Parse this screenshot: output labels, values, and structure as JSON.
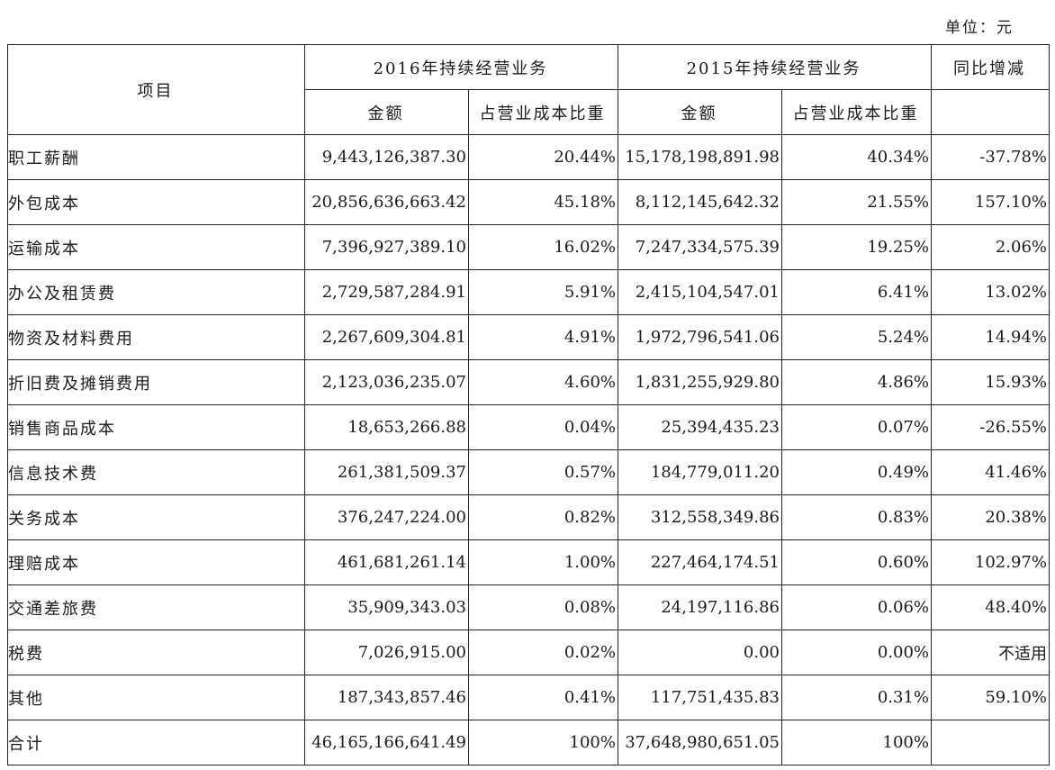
{
  "unit_label": "单位：元",
  "headers": {
    "item": "项目",
    "year2016": "2016年持续经营业务",
    "year2015": "2015年持续经营业务",
    "yoy": "同比增减",
    "amount_2016": "金额",
    "ratio_2016": "占营业成本比重",
    "amount_2015": "金额",
    "ratio_2015": "占营业成本比重"
  },
  "rows": [
    {
      "name": "职工薪酬",
      "amount_2016": "9,443,126,387.30",
      "ratio_2016": "20.44%",
      "amount_2015": "15,178,198,891.98",
      "ratio_2015": "40.34%",
      "yoy": "-37.78%"
    },
    {
      "name": "外包成本",
      "amount_2016": "20,856,636,663.42",
      "ratio_2016": "45.18%",
      "amount_2015": "8,112,145,642.32",
      "ratio_2015": "21.55%",
      "yoy": "157.10%"
    },
    {
      "name": "运输成本",
      "amount_2016": "7,396,927,389.10",
      "ratio_2016": "16.02%",
      "amount_2015": "7,247,334,575.39",
      "ratio_2015": "19.25%",
      "yoy": "2.06%"
    },
    {
      "name": "办公及租赁费",
      "amount_2016": "2,729,587,284.91",
      "ratio_2016": "5.91%",
      "amount_2015": "2,415,104,547.01",
      "ratio_2015": "6.41%",
      "yoy": "13.02%"
    },
    {
      "name": "物资及材料费用",
      "amount_2016": "2,267,609,304.81",
      "ratio_2016": "4.91%",
      "amount_2015": "1,972,796,541.06",
      "ratio_2015": "5.24%",
      "yoy": "14.94%"
    },
    {
      "name": "折旧费及摊销费用",
      "amount_2016": "2,123,036,235.07",
      "ratio_2016": "4.60%",
      "amount_2015": "1,831,255,929.80",
      "ratio_2015": "4.86%",
      "yoy": "15.93%"
    },
    {
      "name": "销售商品成本",
      "amount_2016": "18,653,266.88",
      "ratio_2016": "0.04%",
      "amount_2015": "25,394,435.23",
      "ratio_2015": "0.07%",
      "yoy": "-26.55%"
    },
    {
      "name": "信息技术费",
      "amount_2016": "261,381,509.37",
      "ratio_2016": "0.57%",
      "amount_2015": "184,779,011.20",
      "ratio_2015": "0.49%",
      "yoy": "41.46%"
    },
    {
      "name": "关务成本",
      "amount_2016": "376,247,224.00",
      "ratio_2016": "0.82%",
      "amount_2015": "312,558,349.86",
      "ratio_2015": "0.83%",
      "yoy": "20.38%"
    },
    {
      "name": "理赔成本",
      "amount_2016": "461,681,261.14",
      "ratio_2016": "1.00%",
      "amount_2015": "227,464,174.51",
      "ratio_2015": "0.60%",
      "yoy": "102.97%"
    },
    {
      "name": "交通差旅费",
      "amount_2016": "35,909,343.03",
      "ratio_2016": "0.08%",
      "amount_2015": "24,197,116.86",
      "ratio_2015": "0.06%",
      "yoy": "48.40%"
    },
    {
      "name": "税费",
      "amount_2016": "7,026,915.00",
      "ratio_2016": "0.02%",
      "amount_2015": "0.00",
      "ratio_2015": "0.00%",
      "yoy": "不适用"
    },
    {
      "name": "其他",
      "amount_2016": "187,343,857.46",
      "ratio_2016": "0.41%",
      "amount_2015": "117,751,435.83",
      "ratio_2015": "0.31%",
      "yoy": "59.10%"
    },
    {
      "name": "合计",
      "amount_2016": "46,165,166,641.49",
      "ratio_2016": "100%",
      "amount_2015": "37,648,980,651.05",
      "ratio_2015": "100%",
      "yoy": ""
    }
  ]
}
